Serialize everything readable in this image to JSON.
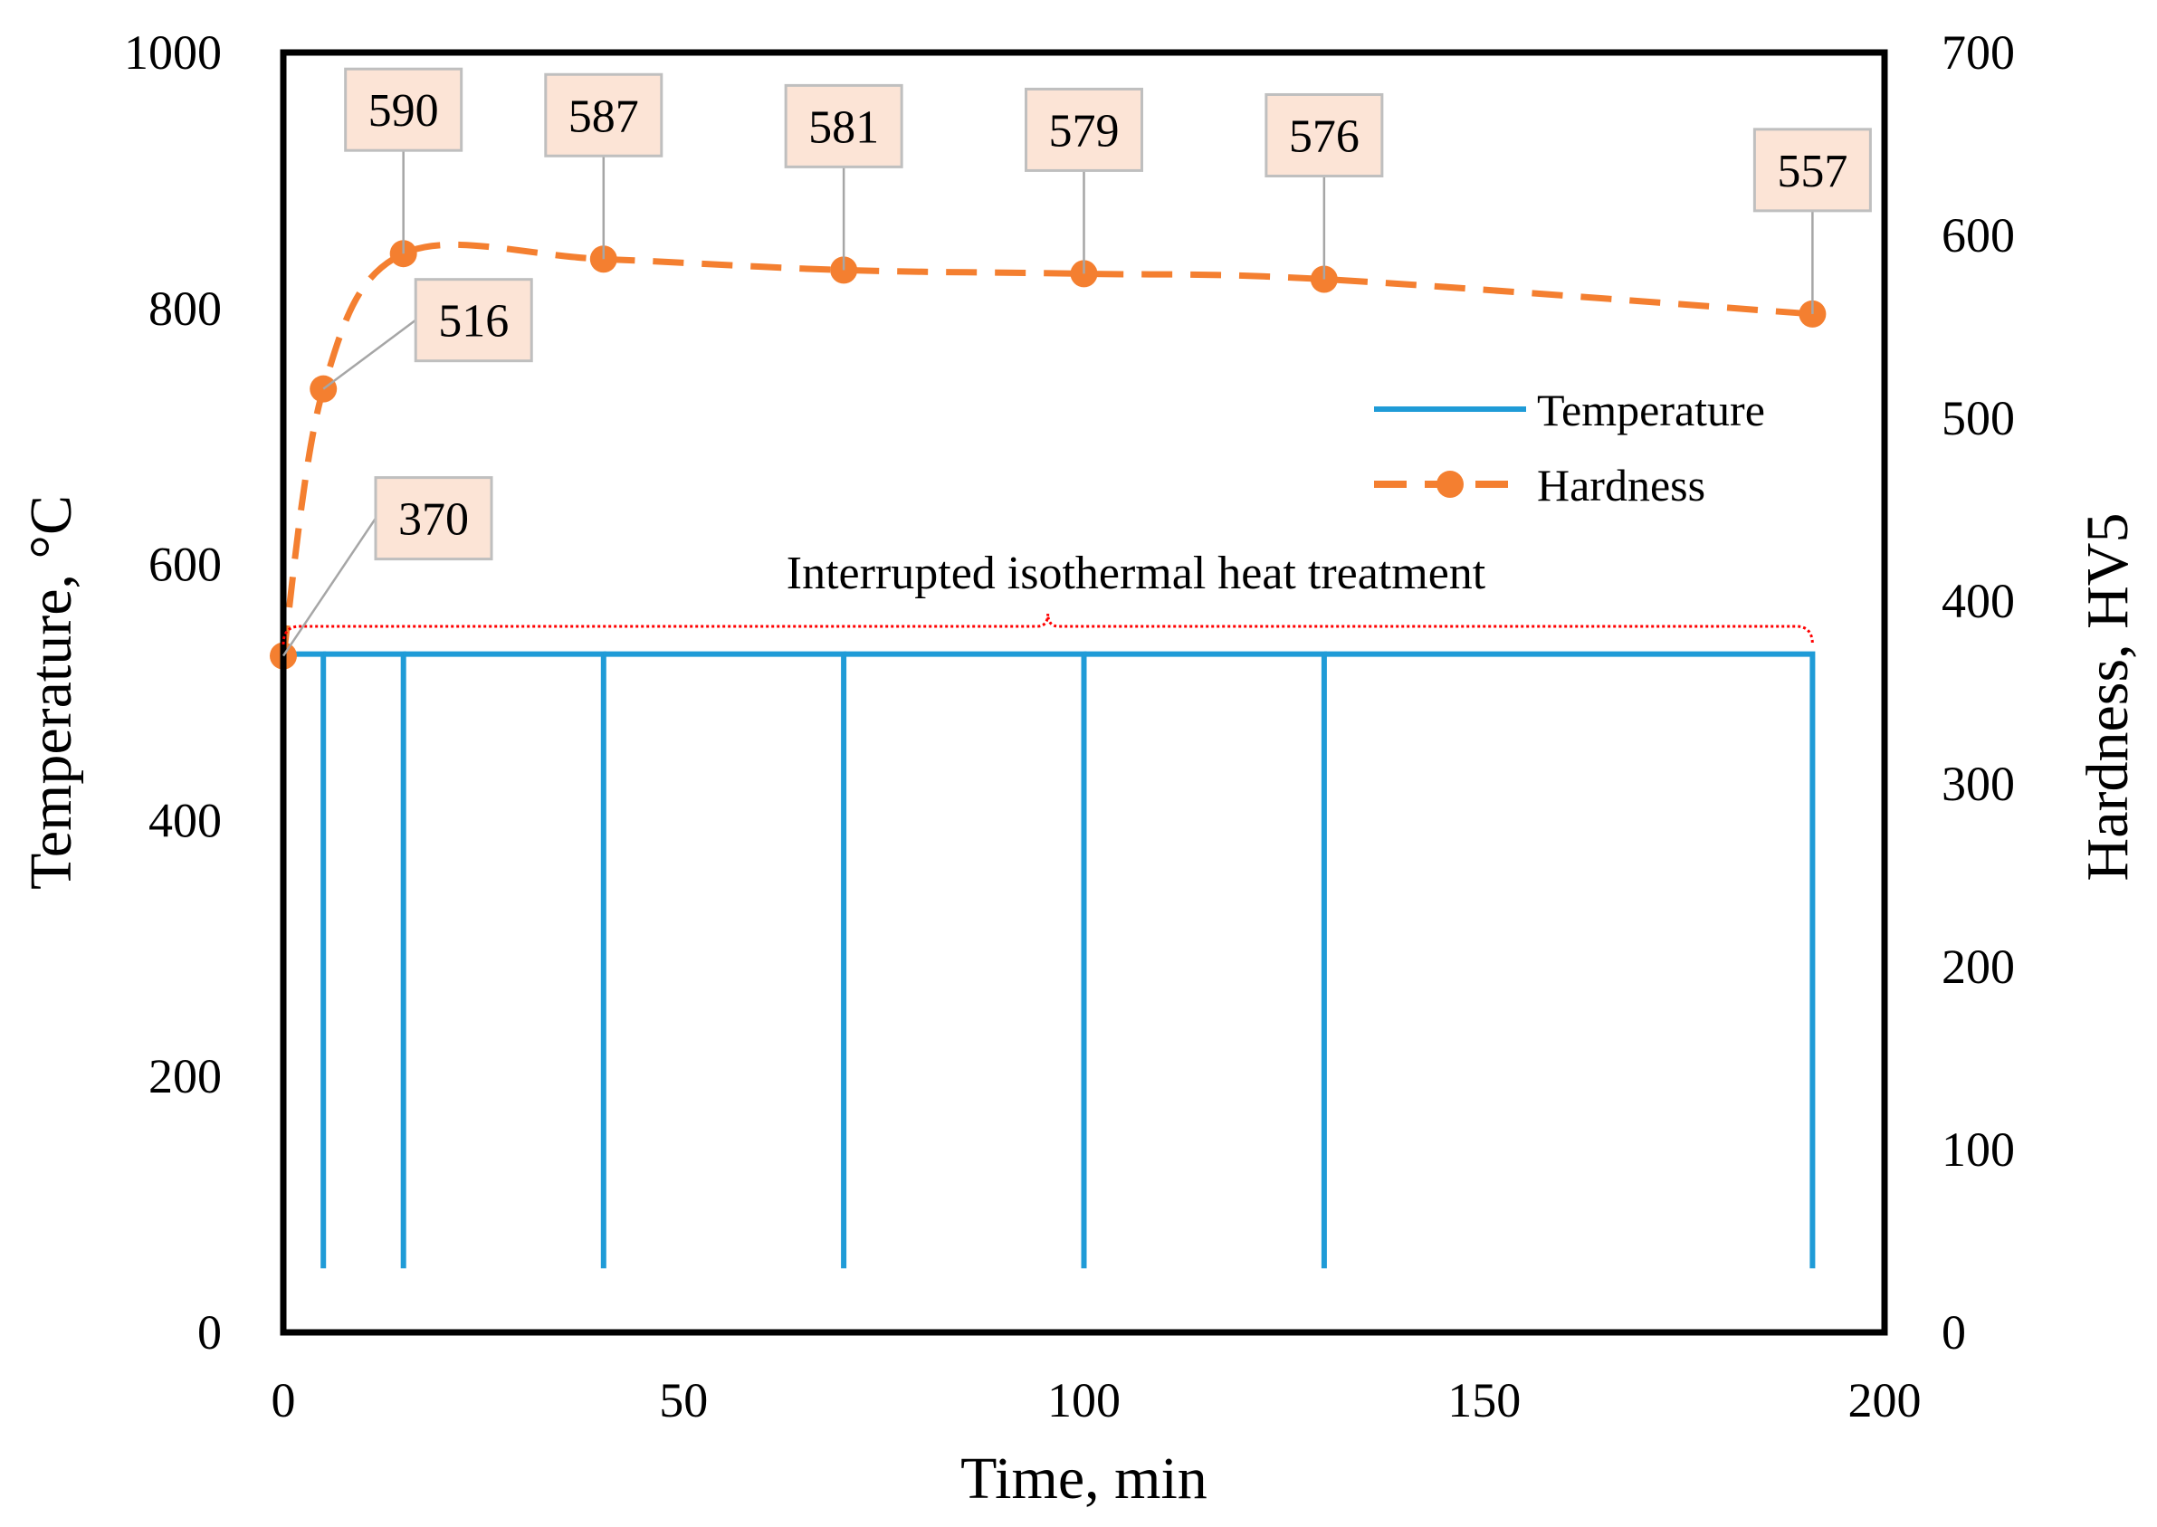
{
  "chart_data": {
    "type": "line",
    "title": "",
    "xlabel": "Time, min",
    "ylabel_left": "Temperature, °C",
    "ylabel_right": "Hardness, HV5",
    "xlim": [
      0,
      200
    ],
    "ylim_left": [
      0,
      1000
    ],
    "ylim_right": [
      0,
      700
    ],
    "x_ticks": [
      "0",
      "50",
      "100",
      "150",
      "200"
    ],
    "y_left_ticks": [
      "0",
      "200",
      "400",
      "600",
      "800",
      "1000"
    ],
    "y_right_ticks": [
      "0",
      "100",
      "200",
      "300",
      "400",
      "500",
      "600",
      "700"
    ],
    "grid": false,
    "legend_position": "upper-right",
    "legend": [
      "Temperature",
      "Hardness"
    ],
    "annotation": "Interrupted isothermal heat treatment",
    "annotation_range": [
      0,
      191
    ],
    "colors": {
      "temperature": "#1f9bd7",
      "hardness": "#f47f30",
      "bracket": "#ff0000",
      "label_fill": "#fce4d6",
      "label_border": "#bfbfbf",
      "frame": "#000000"
    },
    "series": [
      {
        "name": "Temperature",
        "axis": "left",
        "style": "solid",
        "hold_temperature": 530,
        "quench_temperature": 50,
        "segments": [
          [
            [
              0,
              50
            ],
            [
              0,
              530
            ],
            [
              5,
              530
            ],
            [
              5,
              50
            ]
          ],
          [
            [
              5,
              530
            ],
            [
              15,
              530
            ],
            [
              15,
              50
            ]
          ],
          [
            [
              15,
              530
            ],
            [
              40,
              530
            ],
            [
              40,
              50
            ]
          ],
          [
            [
              40,
              530
            ],
            [
              70,
              530
            ],
            [
              70,
              50
            ]
          ],
          [
            [
              70,
              530
            ],
            [
              100,
              530
            ],
            [
              100,
              50
            ]
          ],
          [
            [
              100,
              530
            ],
            [
              130,
              530
            ],
            [
              130,
              50
            ]
          ],
          [
            [
              130,
              530
            ],
            [
              191,
              530
            ],
            [
              191,
              50
            ]
          ]
        ]
      },
      {
        "name": "Hardness",
        "axis": "right",
        "style": "dashed",
        "x": [
          0,
          5,
          15,
          40,
          70,
          100,
          130,
          191
        ],
        "values": [
          370,
          516,
          590,
          587,
          581,
          579,
          576,
          557
        ],
        "data_labels": [
          "370",
          "516",
          "590",
          "587",
          "581",
          "579",
          "576",
          "557"
        ],
        "label_positions": [
          "upper-right",
          "upper-right",
          "above",
          "above",
          "above",
          "above",
          "above",
          "above"
        ]
      }
    ]
  }
}
